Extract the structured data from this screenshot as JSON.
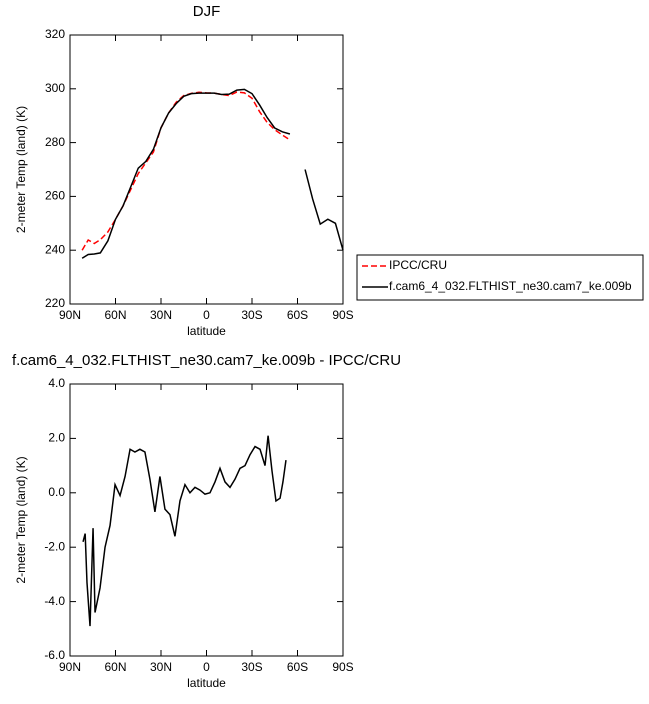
{
  "chart_data": [
    {
      "type": "line",
      "title": "DJF",
      "xlabel": "latitude",
      "ylabel": "2-meter Temp (land) (K)",
      "xlim": [
        90,
        -90
      ],
      "ylim": [
        220,
        320
      ],
      "xticks": [
        {
          "value": 90,
          "label": "90N"
        },
        {
          "value": 60,
          "label": "60N"
        },
        {
          "value": 30,
          "label": "30N"
        },
        0,
        {
          "value": -30,
          "label": "30S"
        },
        {
          "value": -60,
          "label": "60S"
        },
        {
          "value": -90,
          "label": "90S"
        }
      ],
      "yticks": [
        220,
        240,
        260,
        280,
        300,
        320
      ],
      "legend": "outside-right",
      "x": [
        82,
        78,
        74,
        70,
        65,
        60,
        55,
        50,
        45,
        40,
        35,
        30,
        25,
        20,
        15,
        10,
        5,
        0,
        -5,
        -10,
        -15,
        -20,
        -25,
        -30,
        -35,
        -40,
        -45,
        -50,
        -55,
        -60,
        -65,
        -70,
        -75,
        -80,
        -85,
        -90
      ],
      "series": [
        {
          "name": "IPCC/CRU",
          "color": "#ff0000",
          "dash": true,
          "values": [
            240.0,
            243.8,
            242.5,
            243.9,
            246.8,
            251.5,
            256.5,
            262.5,
            268.5,
            272.5,
            276.5,
            285.5,
            291.0,
            295.0,
            297.5,
            298.3,
            298.7,
            298.5,
            298.4,
            297.9,
            297.5,
            298.8,
            298.5,
            296.5,
            291.5,
            287.5,
            284.8,
            282.8,
            281.0,
            null,
            null,
            null,
            null,
            null,
            null,
            null
          ]
        },
        {
          "name": "f.cam6_4_032.FLTHIST_ne30.cam7_ke.009b",
          "color": "#000000",
          "dash": false,
          "values": [
            237.0,
            238.4,
            238.6,
            239.0,
            243.5,
            251.5,
            256.5,
            263.5,
            270.5,
            273.0,
            277.5,
            285.5,
            291.0,
            294.5,
            297.2,
            298.2,
            298.4,
            298.4,
            298.4,
            297.9,
            298.0,
            299.5,
            299.8,
            298.2,
            294.0,
            289.3,
            285.4,
            284.0,
            283.2,
            null,
            270.0,
            259.0,
            249.7,
            251.5,
            250.0,
            240.0
          ]
        }
      ]
    },
    {
      "type": "line",
      "title": "f.cam6_4_032.FLTHIST_ne30.cam7_ke.009b - IPCC/CRU",
      "xlabel": "latitude",
      "ylabel": "2-meter Temp (land) (K)",
      "xlim": [
        90,
        -90
      ],
      "ylim": [
        -6,
        4
      ],
      "xticks": [
        {
          "value": 90,
          "label": "90N"
        },
        {
          "value": 60,
          "label": "60N"
        },
        {
          "value": 30,
          "label": "30N"
        },
        0,
        {
          "value": -30,
          "label": "30S"
        },
        {
          "value": -60,
          "label": "60S"
        },
        {
          "value": -90,
          "label": "90S"
        }
      ],
      "yticks": [
        {
          "value": -6,
          "label": "-6.0"
        },
        {
          "value": -4,
          "label": "-4.0"
        },
        {
          "value": -2,
          "label": "-2.0"
        },
        {
          "value": 0,
          "label": "0.0"
        },
        {
          "value": 2,
          "label": "2.0"
        },
        {
          "value": 4,
          "label": "4.0"
        }
      ],
      "x": [
        81.4,
        80,
        78.8,
        76.8,
        74.8,
        73.5,
        70.2,
        66.9,
        63.6,
        60.3,
        57,
        53.7,
        50.4,
        47.2,
        43.9,
        40.6,
        37.3,
        34,
        30.7,
        27.4,
        24.1,
        20.8,
        17.5,
        14.2,
        10.9,
        7.6,
        4.3,
        1.0,
        -2.3,
        -5.6,
        -8.9,
        -12.2,
        -15.5,
        -18.8,
        -22.1,
        -25.4,
        -28.7,
        -32,
        -35.3,
        -38.6,
        -40.6,
        -43.2,
        -45.8,
        -48.5,
        -50.4,
        -52.4
      ],
      "series": [
        {
          "name": null,
          "color": "#000000",
          "dash": false,
          "values": [
            -1.8,
            -1.5,
            -3.3,
            -4.9,
            -1.3,
            -4.4,
            -3.5,
            -2.0,
            -1.2,
            0.3,
            -0.1,
            0.6,
            1.6,
            1.5,
            1.6,
            1.5,
            0.5,
            -0.7,
            0.6,
            -0.6,
            -0.8,
            -1.6,
            -0.3,
            0.3,
            0.0,
            0.2,
            0.1,
            -0.05,
            0.0,
            0.4,
            0.9,
            0.4,
            0.2,
            0.5,
            0.9,
            1.0,
            1.4,
            1.7,
            1.6,
            1.0,
            2.1,
            0.8,
            -0.3,
            -0.2,
            0.4,
            1.2
          ]
        }
      ]
    }
  ]
}
